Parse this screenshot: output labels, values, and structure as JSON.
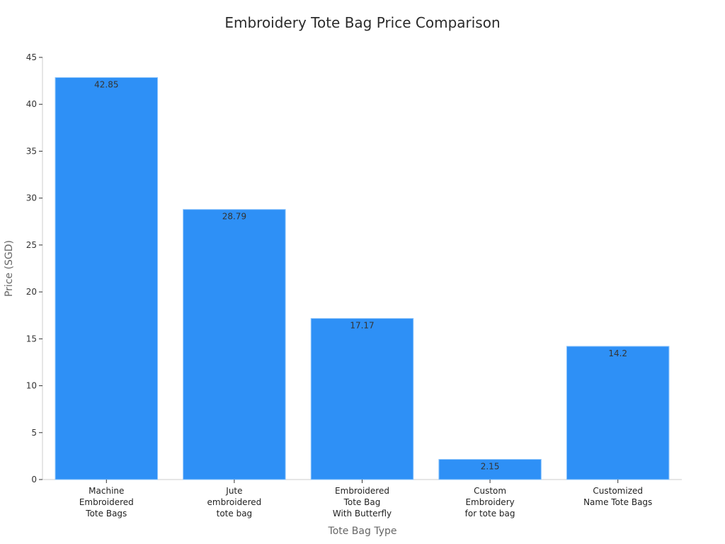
{
  "chart_data": {
    "type": "bar",
    "title": "Embroidery Tote Bag Price Comparison",
    "xlabel": "Tote Bag Type",
    "ylabel": "Price (SGD)",
    "categories": [
      [
        "Machine",
        "Embroidered",
        "Tote Bags"
      ],
      [
        "Jute",
        "embroidered",
        "tote bag"
      ],
      [
        "Embroidered",
        "Tote Bag",
        "With Butterfly"
      ],
      [
        "Custom",
        "Embroidery",
        "for tote bag"
      ],
      [
        "Customized",
        "Name Tote Bags"
      ]
    ],
    "values": [
      42.85,
      28.79,
      17.17,
      2.15,
      14.2
    ],
    "data_labels": [
      "42.85",
      "28.79",
      "17.17",
      "2.15",
      "14.2"
    ],
    "ylim": [
      0,
      45
    ],
    "yticks": [
      0,
      5,
      10,
      15,
      20,
      25,
      30,
      35,
      40,
      45
    ],
    "grid": false,
    "bar_color": "#2e90f6",
    "bar_edge_color": "#8ec5fb"
  }
}
